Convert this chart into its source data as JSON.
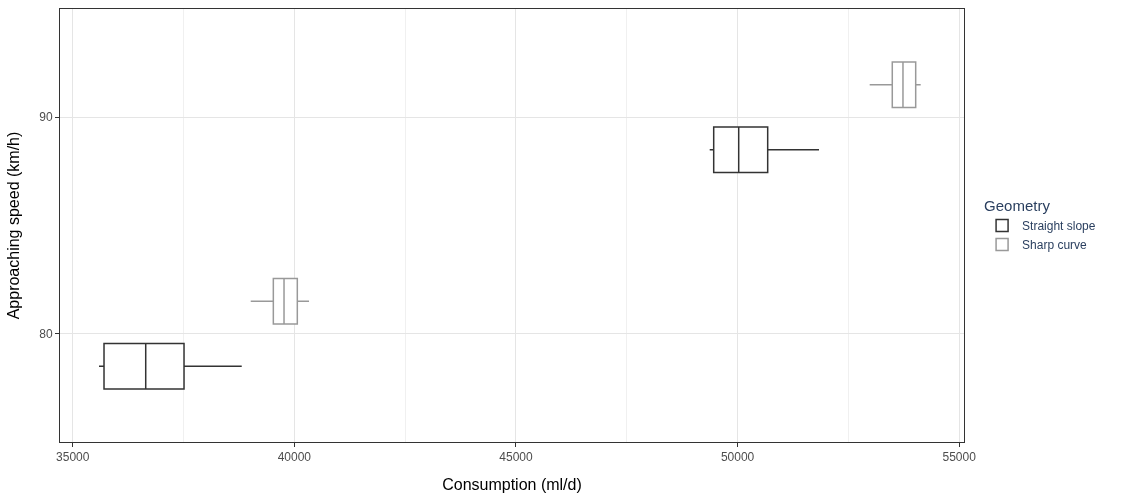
{
  "chart_data": {
    "type": "box",
    "orientation": "horizontal",
    "xlabel": "Consumption (ml/d)",
    "ylabel": "Approaching speed (km/h)",
    "legend_title": "Geometry",
    "categories": [
      "90",
      "80"
    ],
    "xlim": [
      34713,
      55108
    ],
    "xticks": [
      35000,
      40000,
      45000,
      50000,
      55000
    ],
    "grid": true,
    "legend": "right",
    "series": [
      {
        "name": "Straight slope",
        "color": "#333333",
        "boxes": [
          {
            "low": 49371,
            "q1": 49461,
            "median": 50025,
            "q3": 50679,
            "high": 51837
          },
          {
            "low": 35593,
            "q1": 35706,
            "median": 36647,
            "q3": 37511,
            "high": 38813
          }
        ]
      },
      {
        "name": "Sharp curve",
        "color": "#999999",
        "boxes": [
          {
            "low": 52980,
            "q1": 53490,
            "median": 53731,
            "q3": 54018,
            "high": 54131
          },
          {
            "low": 39016,
            "q1": 39526,
            "median": 39767,
            "q3": 40067,
            "high": 40331
          }
        ]
      }
    ]
  }
}
